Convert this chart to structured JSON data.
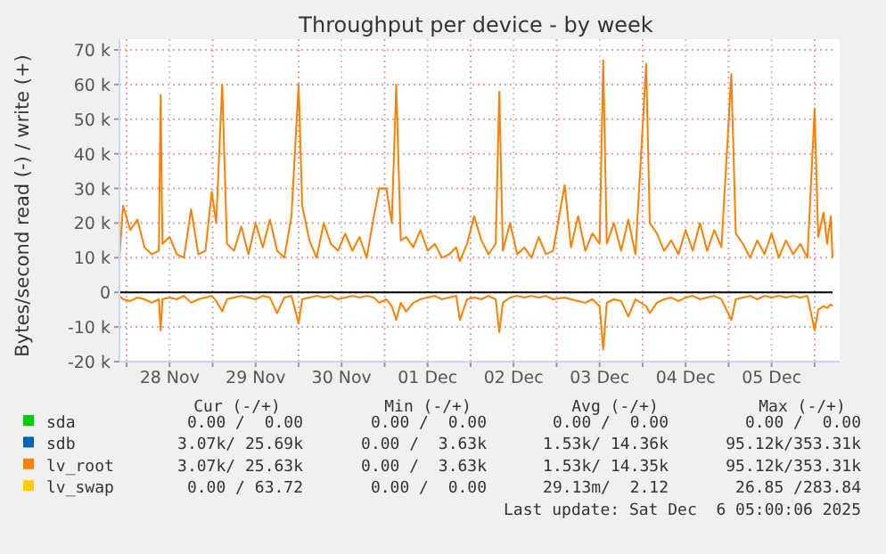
{
  "chart_data": {
    "type": "line",
    "title": "Throughput per device - by week",
    "ylabel": "Bytes/second read (-) / write (+)",
    "xlim": [
      "2025-11-27T22:00",
      "2025-12-06T05:00"
    ],
    "xticks": [
      {
        "value": "2025-11-28T00:00",
        "label": null
      },
      {
        "value": "2025-11-28T12:00",
        "label": "28 Nov"
      },
      {
        "value": "2025-11-29T00:00",
        "label": null
      },
      {
        "value": "2025-11-29T12:00",
        "label": "29 Nov"
      },
      {
        "value": "2025-11-30T00:00",
        "label": null
      },
      {
        "value": "2025-11-30T12:00",
        "label": "30 Nov"
      },
      {
        "value": "2025-12-01T00:00",
        "label": null
      },
      {
        "value": "2025-12-01T12:00",
        "label": "01 Dec"
      },
      {
        "value": "2025-12-02T00:00",
        "label": null
      },
      {
        "value": "2025-12-02T12:00",
        "label": "02 Dec"
      },
      {
        "value": "2025-12-03T00:00",
        "label": null
      },
      {
        "value": "2025-12-03T12:00",
        "label": "03 Dec"
      },
      {
        "value": "2025-12-04T00:00",
        "label": null
      },
      {
        "value": "2025-12-04T12:00",
        "label": "04 Dec"
      },
      {
        "value": "2025-12-05T00:00",
        "label": null
      },
      {
        "value": "2025-12-05T12:00",
        "label": "05 Dec"
      },
      {
        "value": "2025-12-06T00:00",
        "label": null
      }
    ],
    "ylim": [
      -20000,
      70000
    ],
    "yticks": [
      {
        "value": -20000,
        "label": "-20 k"
      },
      {
        "value": -10000,
        "label": "-10 k"
      },
      {
        "value": 0,
        "label": "0"
      },
      {
        "value": 10000,
        "label": "10 k"
      },
      {
        "value": 20000,
        "label": "20 k"
      },
      {
        "value": 30000,
        "label": "30 k"
      },
      {
        "value": 40000,
        "label": "40 k"
      },
      {
        "value": 50000,
        "label": "50 k"
      },
      {
        "value": 60000,
        "label": "60 k"
      },
      {
        "value": 70000,
        "label": "70 k"
      }
    ],
    "grid": true,
    "legend": "bottom",
    "line_style": "solid",
    "ref_lines": [
      {
        "axis": "y",
        "value": 0,
        "color": "#000000"
      }
    ],
    "x": [
      "2025-11-27T22:00",
      "2025-11-27T23:00",
      "2025-11-28T01:00",
      "2025-11-28T03:00",
      "2025-11-28T05:00",
      "2025-11-28T07:00",
      "2025-11-28T09:00",
      "2025-11-28T09:30",
      "2025-11-28T10:00",
      "2025-11-28T12:00",
      "2025-11-28T14:00",
      "2025-11-28T16:00",
      "2025-11-28T18:00",
      "2025-11-28T20:00",
      "2025-11-28T22:00",
      "2025-11-28T23:45",
      "2025-11-29T01:00",
      "2025-11-29T02:40",
      "2025-11-29T04:00",
      "2025-11-29T06:00",
      "2025-11-29T08:00",
      "2025-11-29T10:00",
      "2025-11-29T12:00",
      "2025-11-29T14:00",
      "2025-11-29T16:00",
      "2025-11-29T18:00",
      "2025-11-29T20:00",
      "2025-11-29T22:00",
      "2025-11-30T00:00",
      "2025-11-30T01:00",
      "2025-11-30T03:00",
      "2025-11-30T05:00",
      "2025-11-30T07:00",
      "2025-11-30T09:00",
      "2025-11-30T11:00",
      "2025-11-30T13:00",
      "2025-11-30T15:00",
      "2025-11-30T17:00",
      "2025-11-30T19:00",
      "2025-11-30T21:00",
      "2025-11-30T22:30",
      "2025-12-01T00:30",
      "2025-12-01T02:00",
      "2025-12-01T03:15",
      "2025-12-01T04:30",
      "2025-12-01T06:00",
      "2025-12-01T08:00",
      "2025-12-01T10:00",
      "2025-12-01T12:00",
      "2025-12-01T14:00",
      "2025-12-01T16:00",
      "2025-12-01T18:00",
      "2025-12-01T20:00",
      "2025-12-01T21:00",
      "2025-12-01T23:00",
      "2025-12-02T01:00",
      "2025-12-02T03:00",
      "2025-12-02T05:00",
      "2025-12-02T07:00",
      "2025-12-02T08:00",
      "2025-12-02T09:00",
      "2025-12-02T11:00",
      "2025-12-02T13:00",
      "2025-12-02T15:00",
      "2025-12-02T17:00",
      "2025-12-02T19:00",
      "2025-12-02T21:00",
      "2025-12-02T23:00",
      "2025-12-03T02:15",
      "2025-12-03T04:00",
      "2025-12-03T06:00",
      "2025-12-03T08:00",
      "2025-12-03T10:00",
      "2025-12-03T12:00",
      "2025-12-03T13:00",
      "2025-12-03T14:00",
      "2025-12-03T16:00",
      "2025-12-03T18:00",
      "2025-12-03T20:00",
      "2025-12-03T22:00",
      "2025-12-04T01:00",
      "2025-12-04T02:00",
      "2025-12-04T04:00",
      "2025-12-04T06:00",
      "2025-12-04T08:00",
      "2025-12-04T10:00",
      "2025-12-04T12:00",
      "2025-12-04T14:00",
      "2025-12-04T16:00",
      "2025-12-04T18:00",
      "2025-12-04T20:00",
      "2025-12-04T22:00",
      "2025-12-05T00:45",
      "2025-12-05T02:00",
      "2025-12-05T04:00",
      "2025-12-05T06:00",
      "2025-12-05T08:00",
      "2025-12-05T10:00",
      "2025-12-05T12:00",
      "2025-12-05T14:00",
      "2025-12-05T16:00",
      "2025-12-05T18:00",
      "2025-12-05T20:00",
      "2025-12-05T22:00",
      "2025-12-06T00:00",
      "2025-12-06T01:00",
      "2025-12-06T02:30",
      "2025-12-06T03:30",
      "2025-12-06T04:30",
      "2025-12-06T05:00"
    ],
    "series": [
      {
        "name": "sda",
        "color": "#00cc00",
        "values": [
          null,
          null,
          null,
          null,
          null,
          null,
          null,
          null,
          null,
          null,
          null,
          null,
          null,
          null,
          null,
          null,
          null,
          null,
          null,
          null,
          null,
          null,
          null,
          null,
          null,
          null,
          null,
          null,
          null,
          null,
          null,
          null,
          null,
          null,
          null,
          null,
          null,
          null,
          null,
          null,
          null,
          null,
          null,
          null,
          null,
          null,
          null,
          null,
          null,
          null,
          null,
          null,
          null,
          null,
          null,
          null,
          null,
          null,
          null,
          null,
          null,
          null,
          null,
          null,
          null,
          null,
          null,
          null,
          null,
          null,
          null,
          null,
          null,
          null,
          null,
          null,
          null,
          null,
          null,
          null,
          null,
          null,
          null,
          null,
          null,
          null,
          null,
          null,
          null,
          null,
          null,
          null,
          null,
          null,
          null,
          null,
          null,
          null,
          null,
          null,
          null,
          null,
          null,
          null,
          null,
          null,
          null,
          null,
          null,
          null
        ]
      },
      {
        "name": "sdb",
        "color": "#0066b3",
        "values": [
          null,
          null,
          null,
          null,
          null,
          null,
          null,
          null,
          null,
          null,
          null,
          null,
          null,
          null,
          null,
          null,
          null,
          null,
          null,
          null,
          null,
          null,
          null,
          null,
          null,
          null,
          null,
          null,
          null,
          null,
          null,
          null,
          null,
          null,
          null,
          null,
          null,
          null,
          null,
          null,
          null,
          null,
          null,
          null,
          null,
          null,
          null,
          null,
          null,
          null,
          null,
          null,
          null,
          null,
          null,
          null,
          null,
          null,
          null,
          null,
          null,
          null,
          null,
          null,
          null,
          null,
          null,
          null,
          null,
          null,
          null,
          null,
          null,
          null,
          null,
          null,
          null,
          null,
          null,
          null,
          null,
          null,
          null,
          null,
          null,
          null,
          null,
          null,
          null,
          null,
          null,
          null,
          null,
          null,
          null,
          null,
          null,
          null,
          null,
          null,
          null,
          null,
          null,
          null,
          null,
          null,
          null,
          null,
          null,
          null
        ]
      },
      {
        "name": "lv_root",
        "color": "#ff8000",
        "values": [
          10000,
          25000,
          18000,
          21000,
          13000,
          11000,
          12000,
          57000,
          14000,
          16000,
          11000,
          10000,
          24000,
          11000,
          12000,
          29000,
          20000,
          60000,
          14000,
          12000,
          19000,
          11000,
          20000,
          13000,
          21000,
          12000,
          10000,
          22000,
          60000,
          25000,
          15000,
          10000,
          20000,
          14000,
          12000,
          17000,
          12000,
          16000,
          10000,
          22000,
          30000,
          30000,
          20000,
          60000,
          15000,
          16000,
          13000,
          18000,
          12000,
          14000,
          10000,
          11000,
          13000,
          9000,
          14000,
          22000,
          15000,
          11000,
          14000,
          58000,
          12000,
          20000,
          11000,
          13000,
          10000,
          16000,
          11000,
          12000,
          31000,
          13000,
          22000,
          12000,
          17000,
          14000,
          67000,
          14000,
          20000,
          12000,
          21000,
          11000,
          66000,
          20000,
          17000,
          12000,
          15000,
          11000,
          18000,
          12000,
          20000,
          12000,
          18000,
          13000,
          63000,
          17000,
          14000,
          10000,
          15000,
          11000,
          17000,
          10000,
          15000,
          11000,
          14000,
          10000,
          53000,
          16000,
          23000,
          14000,
          22000,
          10000
        ]
      },
      {
        "name": "lv_swap",
        "color": "#ffcc00",
        "values": [
          null,
          null,
          null,
          null,
          null,
          null,
          null,
          null,
          null,
          null,
          null,
          null,
          null,
          null,
          null,
          null,
          null,
          null,
          null,
          null,
          null,
          null,
          null,
          null,
          null,
          null,
          null,
          null,
          null,
          null,
          null,
          null,
          null,
          null,
          null,
          null,
          null,
          null,
          null,
          null,
          null,
          null,
          null,
          null,
          null,
          null,
          null,
          null,
          null,
          null,
          null,
          null,
          null,
          null,
          null,
          null,
          null,
          null,
          null,
          null,
          null,
          null,
          null,
          null,
          null,
          null,
          null,
          null,
          null,
          null,
          null,
          null,
          null,
          null,
          null,
          null,
          null,
          null,
          null,
          null,
          null,
          null,
          null,
          null,
          null,
          null,
          null,
          null,
          null,
          null,
          null,
          null,
          null,
          null,
          null,
          null,
          null,
          null,
          null,
          null,
          null,
          null,
          null,
          null,
          null,
          null,
          null,
          null,
          null,
          null
        ]
      },
      {
        "color": "#ff8000",
        "values": [
          -1000,
          -2000,
          -2500,
          -1500,
          -2000,
          -3000,
          -2000,
          -11000,
          -2000,
          -1500,
          -2000,
          -1000,
          -3000,
          -2000,
          -1500,
          -1000,
          -2500,
          -5500,
          -2000,
          -1500,
          -1000,
          -1500,
          -2000,
          -1000,
          -1500,
          -6000,
          -1500,
          -1000,
          -9000,
          -2000,
          -1500,
          -1000,
          -1500,
          -1000,
          -2000,
          -1500,
          -1000,
          -1500,
          -1000,
          -1500,
          -3000,
          -2000,
          -4000,
          -8000,
          -3000,
          -5500,
          -3000,
          -2000,
          -1500,
          -1000,
          -2000,
          -1500,
          -1000,
          -8000,
          -2000,
          -1500,
          -2000,
          -1000,
          -2000,
          -11500,
          -3000,
          -1500,
          -1000,
          -1500,
          -1000,
          -1500,
          -1000,
          -2000,
          -1500,
          -2000,
          -2500,
          -3000,
          -2000,
          -4000,
          -16500,
          -3000,
          -2000,
          -2500,
          -7000,
          -2000,
          -4000,
          -6000,
          -3000,
          -2000,
          -1500,
          -2500,
          -1500,
          -1000,
          -2000,
          -1500,
          -1000,
          -2000,
          -8000,
          -2000,
          -1500,
          -1000,
          -2000,
          -1000,
          -1500,
          -1000,
          -1500,
          -1000,
          -1500,
          -1000,
          -11000,
          -5000,
          -4000,
          -4500,
          -3500,
          -4000
        ]
      }
    ],
    "annotations": [
      "Cur (-/+)",
      "Min (-/+)",
      "Avg (-/+)",
      "Max (-/+)",
      "0.00 /  0.00",
      "0.00 /  0.00",
      "0.00 /  0.00",
      "0.00 /  0.00",
      "3.07k/ 25.69k",
      "0.00 /  3.63k",
      "1.53k/ 14.36k",
      "95.12k/353.31k",
      "3.07k/ 25.63k",
      "0.00 /  3.63k",
      "1.53k/ 14.35k",
      "95.12k/353.31k",
      "0.00 / 63.72",
      "0.00 /  0.00",
      "29.13m/  2.12",
      "26.85 /283.84",
      "Last update: Sat Dec  6 05:00:06 2025"
    ]
  }
}
